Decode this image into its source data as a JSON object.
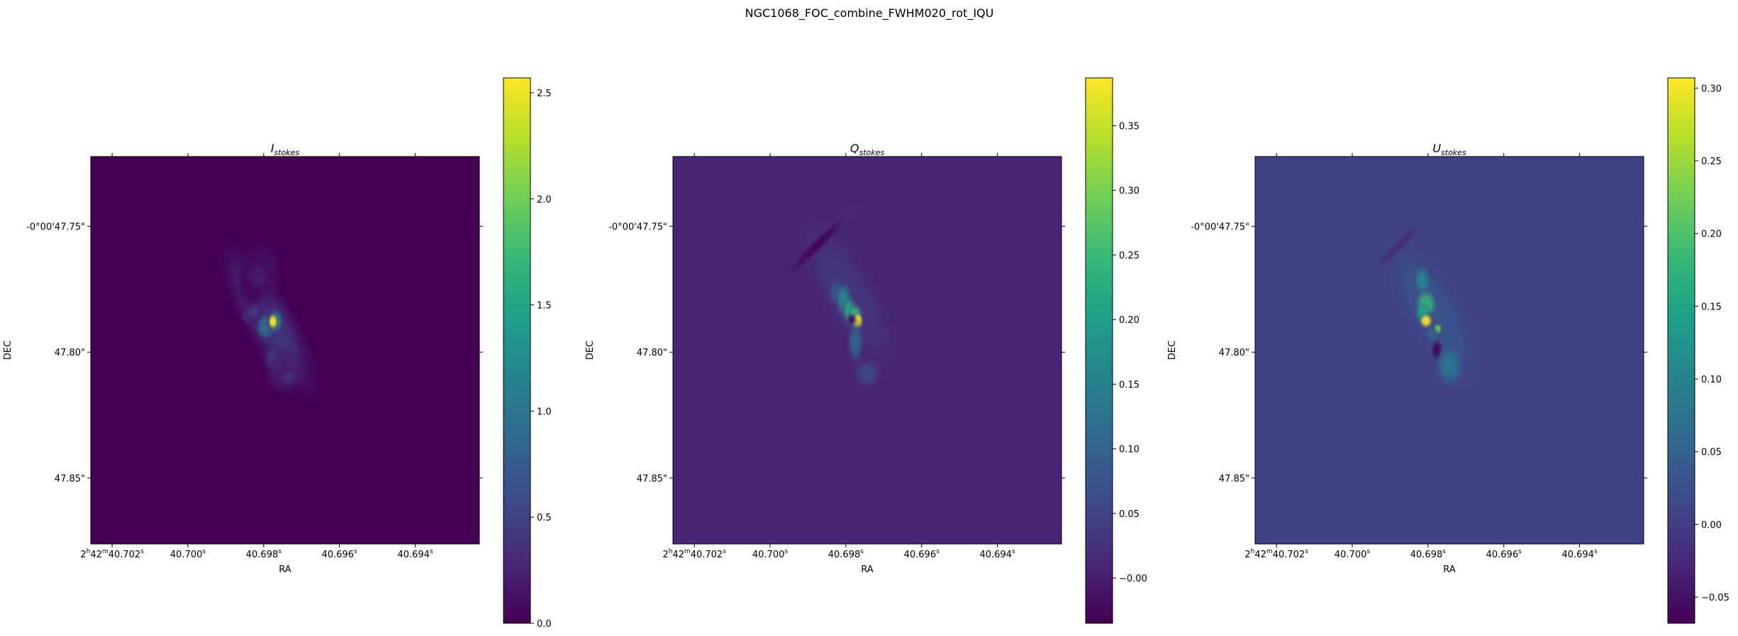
{
  "figure_title": "NGC1068_FOC_combine_FWHM020_rot_IQU",
  "colors": {
    "viridis": [
      "#440154",
      "#482878",
      "#3e4989",
      "#31688e",
      "#26828e",
      "#1f9e89",
      "#35b779",
      "#6ece58",
      "#b5de2b",
      "#fde725"
    ]
  },
  "chart_data": [
    {
      "type": "heatmap",
      "title": "I",
      "title_sub": "stokes",
      "xlabel": "RA",
      "ylabel": "DEC",
      "x_tick_labels": [
        {
          "base": "2",
          "base_sup": "h",
          "mid": "42",
          "mid_sup": "m",
          "value": "40.702",
          "value_sup": "s"
        },
        {
          "value": "40.700",
          "value_sup": "s"
        },
        {
          "value": "40.698",
          "value_sup": "s"
        },
        {
          "value": "40.696",
          "value_sup": "s"
        },
        {
          "value": "40.694",
          "value_sup": "s"
        }
      ],
      "y_tick_labels": [
        "-0°00'47.75\"",
        "47.80\"",
        "47.85\""
      ],
      "colorbar": {
        "vmin": 0.0,
        "vmax": 2.57,
        "ticks": [
          0.0,
          0.5,
          1.0,
          1.5,
          2.0,
          2.5
        ],
        "tick_labels": [
          "0.0",
          "0.5",
          "1.0",
          "1.5",
          "2.0",
          "2.5"
        ]
      },
      "background_value": 0.0,
      "features": [
        {
          "u": 0.46,
          "v": 0.425,
          "sx": 0.035,
          "sy": 0.12,
          "rot": -30,
          "value": 0.45
        },
        {
          "u": 0.44,
          "v": 0.305,
          "sx": 0.03,
          "sy": 0.05,
          "rot": 0,
          "value": 0.12
        },
        {
          "u": 0.42,
          "v": 0.32,
          "sx": 0.02,
          "sy": 0.03,
          "rot": 0,
          "value": 0.05
        },
        {
          "u": 0.41,
          "v": 0.34,
          "sx": 0.015,
          "sy": 0.025,
          "rot": 0,
          "value": 0.03
        },
        {
          "u": 0.41,
          "v": 0.41,
          "sx": 0.015,
          "sy": 0.015,
          "rot": 0,
          "value": 0.3
        },
        {
          "u": 0.42,
          "v": 0.4,
          "sx": 0.012,
          "sy": 0.012,
          "rot": 0,
          "value": 0.4
        },
        {
          "u": 0.43,
          "v": 0.31,
          "sx": 0.02,
          "sy": 0.02,
          "rot": 0,
          "value": 0.2
        },
        {
          "u": 0.45,
          "v": 0.44,
          "sx": 0.015,
          "sy": 0.02,
          "rot": 0,
          "value": 0.9
        },
        {
          "u": 0.475,
          "v": 0.425,
          "sx": 0.012,
          "sy": 0.018,
          "rot": 0,
          "value": 1.2
        },
        {
          "u": 0.469,
          "v": 0.426,
          "sx": 0.007,
          "sy": 0.011,
          "rot": 0,
          "value": 2.57
        },
        {
          "u": 0.47,
          "v": 0.525,
          "sx": 0.015,
          "sy": 0.02,
          "rot": 0,
          "value": 0.5
        },
        {
          "u": 0.5,
          "v": 0.56,
          "sx": 0.03,
          "sy": 0.03,
          "rot": 0,
          "value": 0.22
        },
        {
          "u": 0.51,
          "v": 0.57,
          "sx": 0.015,
          "sy": 0.012,
          "rot": 0,
          "value": 0.3
        }
      ]
    },
    {
      "type": "heatmap",
      "title": "Q",
      "title_sub": "stokes",
      "xlabel": "RA",
      "ylabel": "DEC",
      "x_tick_labels": [
        {
          "base": "2",
          "base_sup": "h",
          "mid": "42",
          "mid_sup": "m",
          "value": "40.702",
          "value_sup": "s"
        },
        {
          "value": "40.700",
          "value_sup": "s"
        },
        {
          "value": "40.698",
          "value_sup": "s"
        },
        {
          "value": "40.696",
          "value_sup": "s"
        },
        {
          "value": "40.694",
          "value_sup": "s"
        }
      ],
      "y_tick_labels": [
        "-0°00'47.75\"",
        "47.80\"",
        "47.85\""
      ],
      "colorbar": {
        "vmin": -0.035,
        "vmax": 0.387,
        "ticks": [
          0.0,
          0.05,
          0.1,
          0.15,
          0.2,
          0.25,
          0.3,
          0.35
        ],
        "tick_labels": [
          "−0.00",
          "0.05",
          "0.10",
          "0.15",
          "0.20",
          "0.25",
          "0.30",
          "0.35"
        ]
      },
      "background_value": 0.008,
      "features": [
        {
          "u": 0.45,
          "v": 0.35,
          "sx": 0.04,
          "sy": 0.12,
          "rot": -30,
          "value": 0.035
        },
        {
          "u": 0.39,
          "v": 0.21,
          "sx": 0.012,
          "sy": 0.08,
          "rot": 45,
          "value": 0.02
        },
        {
          "u": 0.37,
          "v": 0.23,
          "sx": 0.008,
          "sy": 0.06,
          "rot": 45,
          "value": -0.03
        },
        {
          "u": 0.42,
          "v": 0.35,
          "sx": 0.012,
          "sy": 0.02,
          "rot": 0,
          "value": 0.08
        },
        {
          "u": 0.44,
          "v": 0.37,
          "sx": 0.012,
          "sy": 0.025,
          "rot": 0,
          "value": 0.16
        },
        {
          "u": 0.455,
          "v": 0.4,
          "sx": 0.01,
          "sy": 0.02,
          "rot": 0,
          "value": 0.22
        },
        {
          "u": 0.47,
          "v": 0.415,
          "sx": 0.01,
          "sy": 0.02,
          "rot": 0,
          "value": 0.25
        },
        {
          "u": 0.475,
          "v": 0.425,
          "sx": 0.008,
          "sy": 0.012,
          "rot": 0,
          "value": 0.387
        },
        {
          "u": 0.47,
          "v": 0.48,
          "sx": 0.012,
          "sy": 0.03,
          "rot": 0,
          "value": 0.1
        },
        {
          "u": 0.5,
          "v": 0.56,
          "sx": 0.02,
          "sy": 0.02,
          "rot": 0,
          "value": 0.06
        },
        {
          "u": 0.46,
          "v": 0.42,
          "sx": 0.007,
          "sy": 0.008,
          "rot": 0,
          "value": -0.02
        }
      ]
    },
    {
      "type": "heatmap",
      "title": "U",
      "title_sub": "stokes",
      "xlabel": "RA",
      "ylabel": "DEC",
      "x_tick_labels": [
        {
          "base": "2",
          "base_sup": "h",
          "mid": "42",
          "mid_sup": "m",
          "value": "40.702",
          "value_sup": "s"
        },
        {
          "value": "40.700",
          "value_sup": "s"
        },
        {
          "value": "40.698",
          "value_sup": "s"
        },
        {
          "value": "40.696",
          "value_sup": "s"
        },
        {
          "value": "40.694",
          "value_sup": "s"
        }
      ],
      "y_tick_labels": [
        "-0°00'47.75\"",
        "47.80\"",
        "47.85\""
      ],
      "colorbar": {
        "vmin": -0.068,
        "vmax": 0.307,
        "ticks": [
          -0.05,
          0.0,
          0.05,
          0.1,
          0.15,
          0.2,
          0.25,
          0.3
        ],
        "tick_labels": [
          "−0.05",
          "0.00",
          "0.05",
          "0.10",
          "0.15",
          "0.20",
          "0.25",
          "0.30"
        ]
      },
      "background_value": 0.005,
      "features": [
        {
          "u": 0.46,
          "v": 0.4,
          "sx": 0.04,
          "sy": 0.12,
          "rot": -30,
          "value": 0.03
        },
        {
          "u": 0.37,
          "v": 0.23,
          "sx": 0.008,
          "sy": 0.05,
          "rot": 45,
          "value": -0.02
        },
        {
          "u": 0.43,
          "v": 0.32,
          "sx": 0.012,
          "sy": 0.02,
          "rot": 0,
          "value": 0.1
        },
        {
          "u": 0.44,
          "v": 0.38,
          "sx": 0.015,
          "sy": 0.02,
          "rot": 0,
          "value": 0.18
        },
        {
          "u": 0.43,
          "v": 0.405,
          "sx": 0.01,
          "sy": 0.015,
          "rot": 0,
          "value": 0.14
        },
        {
          "u": 0.44,
          "v": 0.424,
          "sx": 0.009,
          "sy": 0.01,
          "rot": 0,
          "value": 0.307
        },
        {
          "u": 0.47,
          "v": 0.445,
          "sx": 0.006,
          "sy": 0.008,
          "rot": 0,
          "value": 0.22
        },
        {
          "u": 0.468,
          "v": 0.5,
          "sx": 0.008,
          "sy": 0.015,
          "rot": 0,
          "value": -0.068
        },
        {
          "u": 0.5,
          "v": 0.54,
          "sx": 0.02,
          "sy": 0.03,
          "rot": 0,
          "value": 0.08
        },
        {
          "u": 0.455,
          "v": 0.46,
          "sx": 0.01,
          "sy": 0.01,
          "rot": 0,
          "value": 0.05
        }
      ]
    }
  ]
}
